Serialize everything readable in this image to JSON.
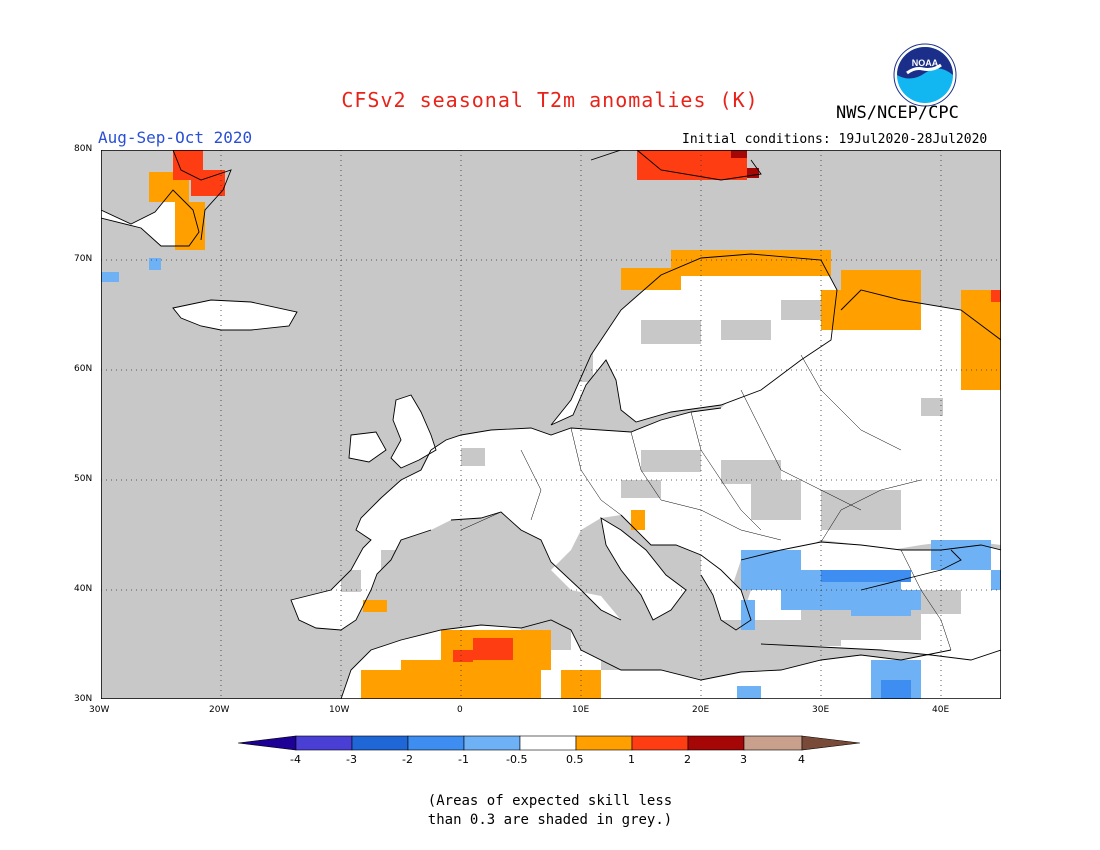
{
  "header": {
    "title": "CFSv2 seasonal T2m anomalies (K)",
    "agency": "NWS/NCEP/CPC",
    "logo_text": "NOAA",
    "season": "Aug-Sep-Oct 2020",
    "initial_conditions": "Initial conditions: 19Jul2020-28Jul2020"
  },
  "map": {
    "lat_labels": [
      "80N",
      "70N",
      "60N",
      "50N",
      "40N",
      "30N"
    ],
    "lon_labels": [
      "30W",
      "20W",
      "10W",
      "0",
      "10E",
      "20E",
      "30E",
      "40E"
    ],
    "skill_mask_color": "#c8c8c8",
    "ocean_color": "#c8c8c8",
    "land_color": "#ffffff"
  },
  "colorbar": {
    "colors": [
      "#1d0096",
      "#4a3fd4",
      "#1f66d6",
      "#3d8ef0",
      "#6eb2f5",
      "#ffffff",
      "#ff9f00",
      "#ff3d12",
      "#a50606",
      "#c8a08c",
      "#7a4a38"
    ],
    "labels": [
      "-4",
      "-3",
      "-2",
      "-1",
      "-0.5",
      "0.5",
      "1",
      "2",
      "3",
      "4"
    ]
  },
  "note": {
    "line1": "(Areas of expected skill less",
    "line2": "than 0.3 are shaded in grey.)"
  }
}
